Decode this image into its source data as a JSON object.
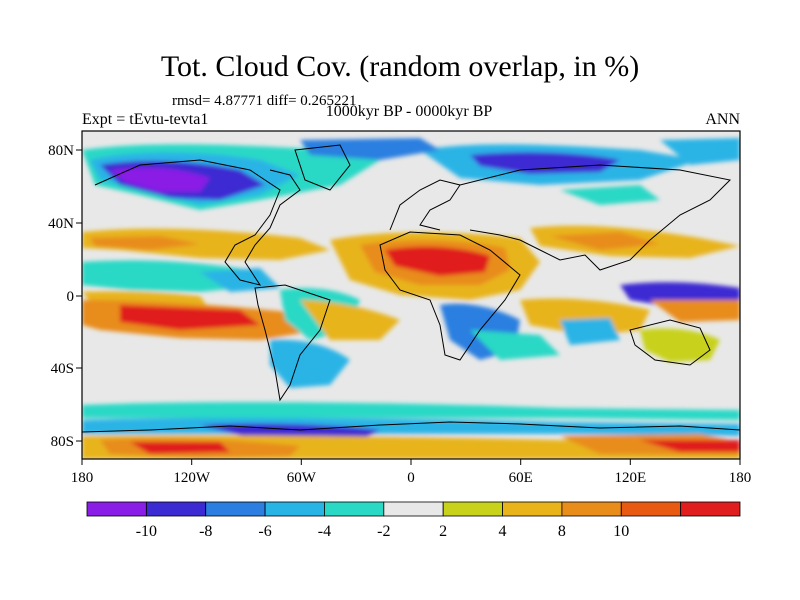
{
  "title": "Tot. Cloud Cov. (random overlap, in %)",
  "stats": "rmsd= 4.87771 diff= 0.265221",
  "experiment": "Expt = tEvtu-tevta1",
  "period": "1000kyr BP - 0000kyr BP",
  "season": "ANN",
  "lon_ticks": [
    "180",
    "120W",
    "60W",
    "0",
    "60E",
    "120E",
    "180"
  ],
  "lat_ticks": [
    "80N",
    "40N",
    "0",
    "40S",
    "80S"
  ],
  "colorbar": {
    "colors": [
      "#8a1ee6",
      "#3c2ad2",
      "#2c7fe0",
      "#29b4e6",
      "#2ad8c6",
      "#e8e8e8",
      "#c8d21a",
      "#e8b41a",
      "#e88c1a",
      "#e85a12",
      "#e01e1e"
    ],
    "labels": [
      "-10",
      "-8",
      "-6",
      "-4",
      "-2",
      "2",
      "4",
      "8",
      "10"
    ]
  }
}
